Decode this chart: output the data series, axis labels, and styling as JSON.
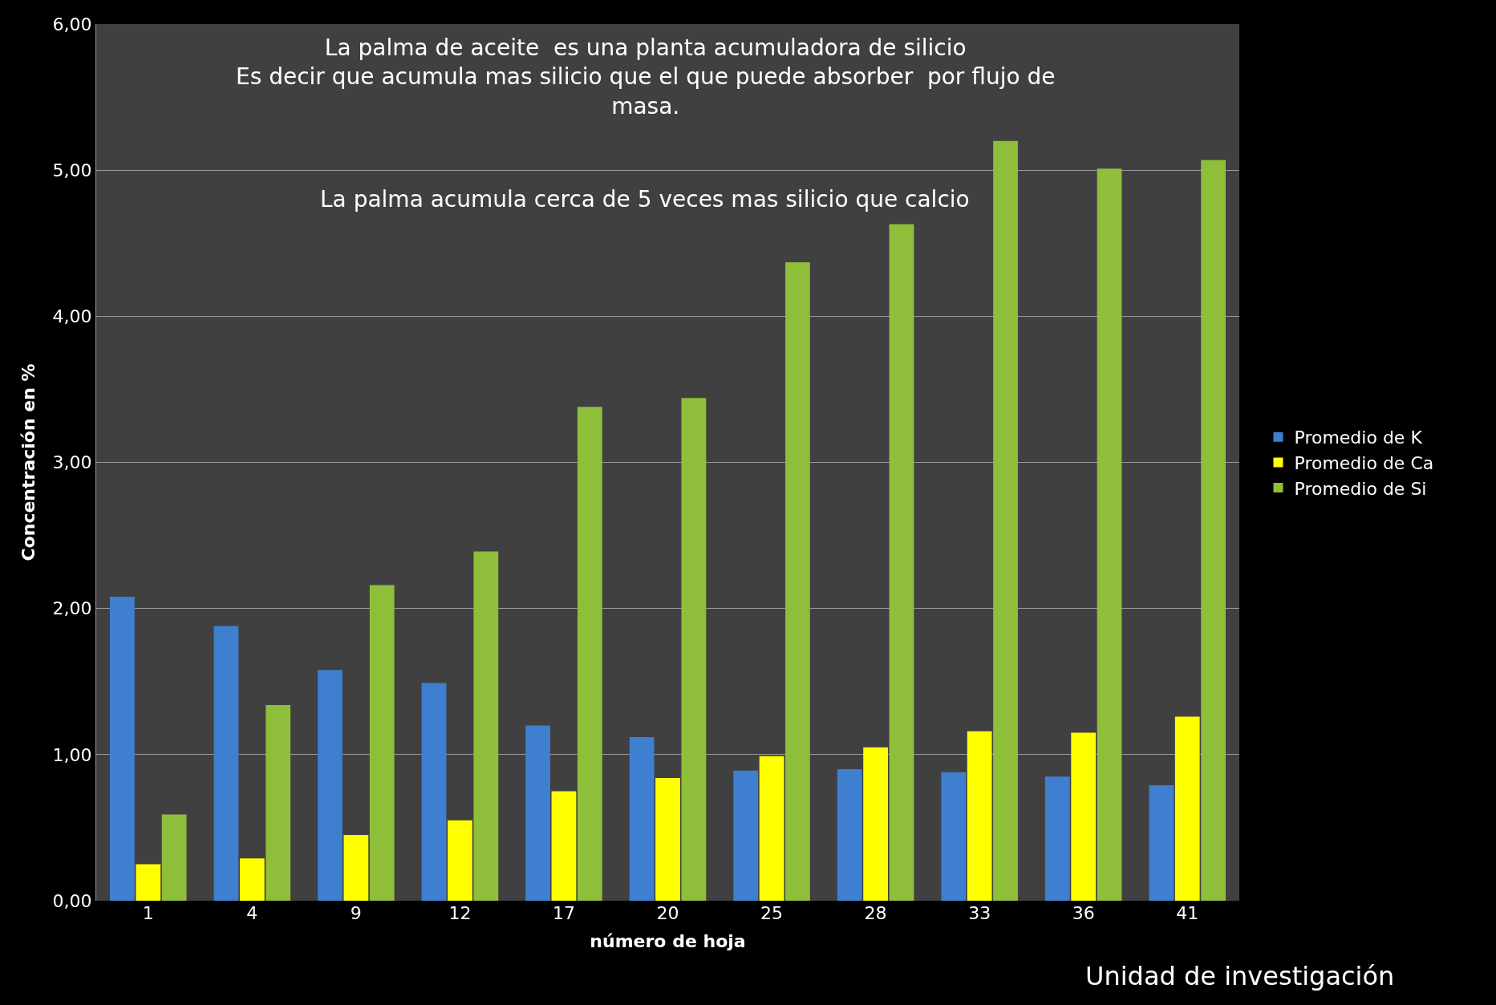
{
  "chart_data": {
    "type": "bar",
    "xlabel": "número de hoja",
    "ylabel": "Concentración en %",
    "categories": [
      "1",
      "4",
      "9",
      "12",
      "17",
      "20",
      "25",
      "28",
      "33",
      "36",
      "41"
    ],
    "series": [
      {
        "name": "Promedio de K",
        "color": "#3f7fd0",
        "values": [
          2.08,
          1.88,
          1.58,
          1.49,
          1.2,
          1.12,
          0.89,
          0.9,
          0.88,
          0.85,
          0.79
        ]
      },
      {
        "name": "Promedio de Ca",
        "color": "#ffff00",
        "values": [
          0.25,
          0.29,
          0.45,
          0.55,
          0.75,
          0.84,
          0.99,
          1.05,
          1.16,
          1.15,
          1.26
        ]
      },
      {
        "name": "Promedio de Si",
        "color": "#8fbf3a",
        "values": [
          0.59,
          1.34,
          2.16,
          2.39,
          3.38,
          3.44,
          4.37,
          4.63,
          5.2,
          5.01,
          5.07
        ]
      }
    ],
    "ylim": [
      0,
      6
    ],
    "yticks": [
      {
        "value": 0,
        "label": "0,00"
      },
      {
        "value": 1,
        "label": "1,00"
      },
      {
        "value": 2,
        "label": "2,00"
      },
      {
        "value": 3,
        "label": "3,00"
      },
      {
        "value": 4,
        "label": "4,00"
      },
      {
        "value": 5,
        "label": "5,00"
      },
      {
        "value": 6,
        "label": "6,00"
      }
    ],
    "grid": "y",
    "legend": "right",
    "annotations": [
      "La palma de aceite  es una planta acumuladora de silicio\nEs decir que acumula mas silicio que el que puede absorber  por flujo de\nmasa.",
      "La palma acumula cerca de 5 veces mas silicio que calcio",
      "Unidad de investigación"
    ]
  }
}
